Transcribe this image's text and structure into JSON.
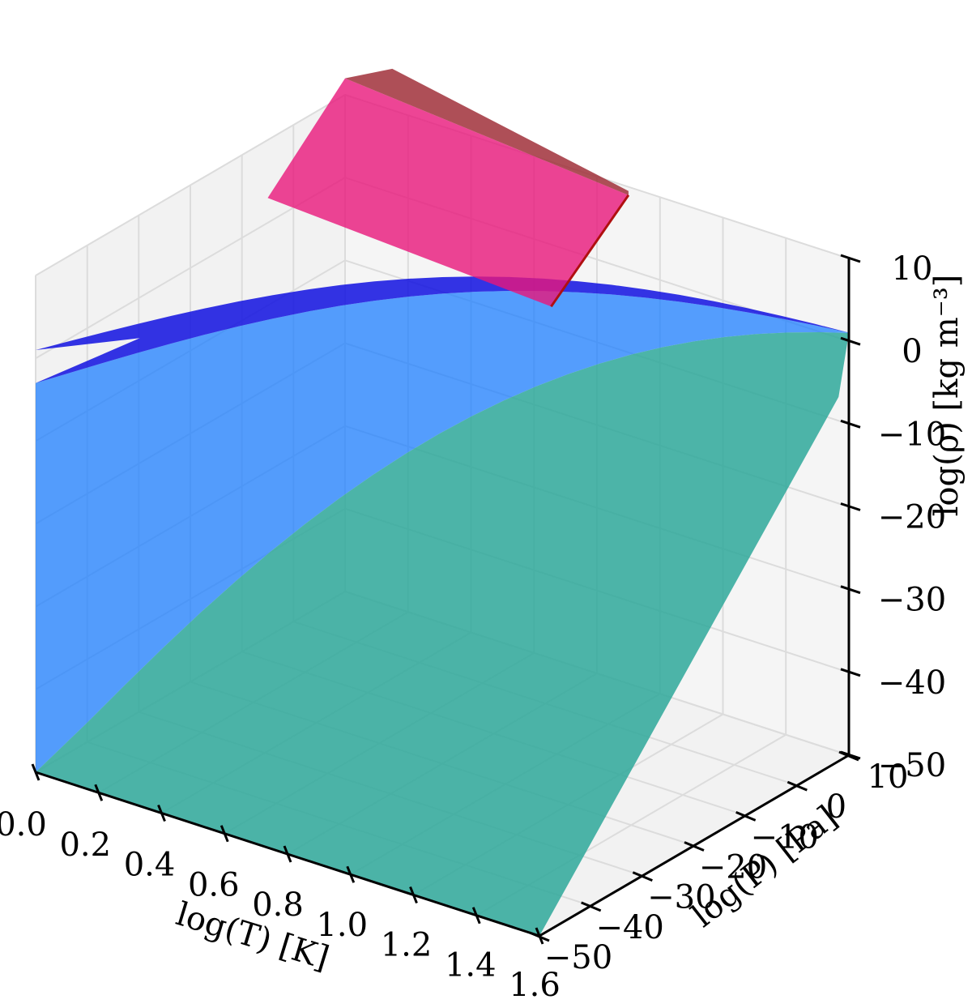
{
  "chart_data": {
    "type": "surface3d",
    "title": "",
    "axes": {
      "x": {
        "label": "log(T) [K]",
        "range": [
          0.0,
          1.6
        ],
        "ticks": [
          0.0,
          0.2,
          0.4,
          0.6,
          0.8,
          1.0,
          1.2,
          1.4,
          1.6
        ],
        "tick_labels": [
          "0.0",
          "0.2",
          "0.4",
          "0.6",
          "0.8",
          "1.0",
          "1.2",
          "1.4",
          "1.6"
        ]
      },
      "y": {
        "label": "log(P) [Pa]",
        "range": [
          -50,
          10
        ],
        "ticks": [
          -50,
          -40,
          -30,
          -20,
          -10,
          0,
          10
        ],
        "tick_labels": [
          "−50",
          "−40",
          "−30",
          "−20",
          "−10",
          "0",
          "10"
        ]
      },
      "z": {
        "label": "log(ρ) [kg m⁻³]",
        "range": [
          -50,
          10
        ],
        "ticks": [
          -50,
          -40,
          -30,
          -20,
          -10,
          0,
          10
        ],
        "tick_labels": [
          "−50",
          "−40",
          "−30",
          "−20",
          "−10",
          "0",
          "10"
        ]
      }
    },
    "grid": true,
    "surfaces": [
      {
        "color": "#e8177a",
        "edge_color": "#b01010",
        "opacity": 0.8,
        "description_points": [
          {
            "x": 0.0,
            "y": 10,
            "z": 12
          },
          {
            "x": 0.9,
            "y": 10,
            "z": 9
          },
          {
            "x": 0.9,
            "y": -5,
            "z": 1
          },
          {
            "x": 0.0,
            "y": -5,
            "z": 3
          }
        ]
      },
      {
        "color": "#1e7fff",
        "edge_color": "#1010e0",
        "opacity": 0.75,
        "description_points": [
          {
            "x": 0.0,
            "y": -50,
            "z": -50
          },
          {
            "x": 0.0,
            "y": -50,
            "z": -3
          },
          {
            "x": 1.6,
            "y": 10,
            "z": 1
          }
        ]
      },
      {
        "color": "#2ea89a",
        "edge_color": "#2ea89a",
        "opacity": 0.85,
        "description_points": [
          {
            "x": 0.0,
            "y": -50,
            "z": -50
          },
          {
            "x": 1.6,
            "y": -50,
            "z": -50
          },
          {
            "x": 1.6,
            "y": 10,
            "z": 1
          }
        ]
      }
    ]
  }
}
